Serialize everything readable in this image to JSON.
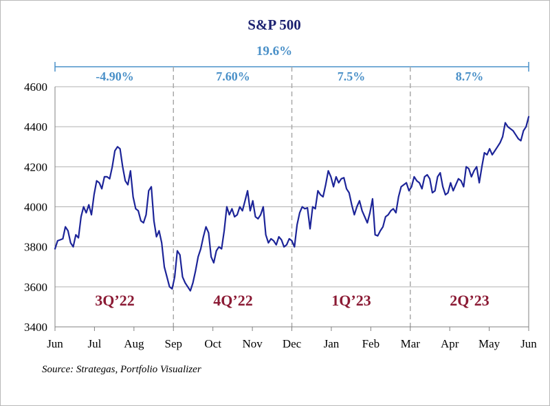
{
  "chart_data": {
    "type": "line",
    "title": "S&P 500",
    "total_return": "19.6%",
    "source": "Source: Strategas, Portfolio Visualizer",
    "ylim": [
      3400,
      4600
    ],
    "y_ticks": [
      "3400",
      "3600",
      "3800",
      "4000",
      "4200",
      "4400",
      "4600"
    ],
    "x_tick_labels": [
      "Jun",
      "Jul",
      "Aug",
      "Sep",
      "Oct",
      "Nov",
      "Dec",
      "Jan",
      "Feb",
      "Mar",
      "Apr",
      "May",
      "Jun"
    ],
    "grid": "horizontal",
    "quarters": [
      {
        "name": "3Q’22",
        "return": "-4.90%"
      },
      {
        "name": "4Q’22",
        "return": "7.60%"
      },
      {
        "name": "1Q’23",
        "return": "7.5%"
      },
      {
        "name": "2Q’23",
        "return": "8.7%"
      }
    ],
    "colors": {
      "line": "#1c2498",
      "title": "#1c2170",
      "returns": "#4a90c8",
      "quarter_labels": "#8b1a34",
      "dividers": "#a8a8a8",
      "grid": "#b0b0b0"
    },
    "series": [
      {
        "values": [
          3790,
          3830,
          3835,
          3840,
          3900,
          3880,
          3820,
          3800,
          3860,
          3845,
          3950,
          4000,
          3970,
          4010,
          3960,
          4060,
          4130,
          4120,
          4090,
          4150,
          4150,
          4140,
          4200,
          4280,
          4300,
          4290,
          4200,
          4130,
          4110,
          4180,
          4050,
          3990,
          3980,
          3930,
          3920,
          3960,
          4080,
          4100,
          3930,
          3850,
          3880,
          3820,
          3700,
          3650,
          3600,
          3590,
          3650,
          3780,
          3760,
          3650,
          3620,
          3600,
          3580,
          3620,
          3680,
          3750,
          3790,
          3850,
          3900,
          3870,
          3750,
          3720,
          3780,
          3800,
          3790,
          3880,
          4000,
          3960,
          3990,
          3950,
          3960,
          4000,
          3980,
          4030,
          4080,
          3980,
          4030,
          3950,
          3940,
          3960,
          4000,
          3860,
          3820,
          3840,
          3830,
          3810,
          3850,
          3835,
          3800,
          3810,
          3840,
          3830,
          3800,
          3910,
          3970,
          4000,
          3990,
          3995,
          3890,
          4000,
          3990,
          4080,
          4060,
          4050,
          4110,
          4180,
          4150,
          4100,
          4150,
          4120,
          4140,
          4145,
          4090,
          4070,
          4010,
          3960,
          4000,
          4030,
          3980,
          3950,
          3920,
          3970,
          4040,
          3860,
          3855,
          3880,
          3900,
          3950,
          3960,
          3980,
          3990,
          3970,
          4050,
          4100,
          4110,
          4120,
          4080,
          4100,
          4150,
          4130,
          4120,
          4090,
          4150,
          4160,
          4140,
          4070,
          4080,
          4150,
          4170,
          4100,
          4060,
          4070,
          4120,
          4080,
          4110,
          4140,
          4130,
          4100,
          4200,
          4190,
          4150,
          4180,
          4200,
          4120,
          4200,
          4270,
          4260,
          4290,
          4260,
          4280,
          4300,
          4320,
          4350,
          4420,
          4400,
          4390,
          4380,
          4360,
          4340,
          4330,
          4380,
          4400,
          4450
        ]
      }
    ]
  }
}
